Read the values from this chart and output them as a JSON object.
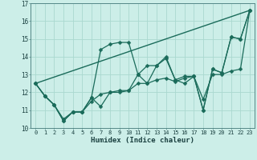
{
  "xlabel": "Humidex (Indice chaleur)",
  "bg_color": "#cceee8",
  "grid_color": "#aad8d0",
  "line_color": "#1a6b5a",
  "xlim": [
    -0.5,
    23.5
  ],
  "ylim": [
    10,
    17
  ],
  "yticks": [
    10,
    11,
    12,
    13,
    14,
    15,
    16,
    17
  ],
  "xticks": [
    0,
    1,
    2,
    3,
    4,
    5,
    6,
    7,
    8,
    9,
    10,
    11,
    12,
    13,
    14,
    15,
    16,
    17,
    18,
    19,
    20,
    21,
    22,
    23
  ],
  "series": [
    {
      "x": [
        0,
        1,
        2,
        3,
        4,
        5,
        6,
        7,
        8,
        9,
        10,
        11,
        12,
        13,
        14,
        15,
        16,
        17,
        18,
        19,
        20,
        21,
        22,
        23
      ],
      "y": [
        12.5,
        11.8,
        11.3,
        10.4,
        10.9,
        10.9,
        11.7,
        11.2,
        12.0,
        12.0,
        12.1,
        13.0,
        12.5,
        13.5,
        13.9,
        12.7,
        12.9,
        12.9,
        11.0,
        13.3,
        13.1,
        15.1,
        15.0,
        16.6
      ],
      "marker": "D",
      "markersize": 2.5,
      "lw": 0.9
    },
    {
      "x": [
        0,
        1,
        2,
        3,
        4,
        5,
        6,
        7,
        8,
        9,
        10,
        11,
        12,
        13,
        14,
        15,
        16,
        17,
        18,
        19,
        20,
        21,
        22,
        23
      ],
      "y": [
        12.5,
        11.8,
        11.3,
        10.4,
        10.9,
        10.9,
        11.7,
        14.4,
        14.7,
        14.8,
        14.8,
        13.0,
        13.5,
        13.5,
        14.0,
        12.7,
        12.5,
        12.9,
        11.0,
        13.3,
        13.1,
        15.1,
        15.0,
        16.6
      ],
      "marker": "D",
      "markersize": 2.5,
      "lw": 0.9
    },
    {
      "x": [
        0,
        23
      ],
      "y": [
        12.5,
        16.6
      ],
      "marker": null,
      "markersize": 0,
      "lw": 1.0
    },
    {
      "x": [
        0,
        1,
        2,
        3,
        4,
        5,
        6,
        7,
        8,
        9,
        10,
        11,
        12,
        13,
        14,
        15,
        16,
        17,
        18,
        19,
        20,
        21,
        22,
        23
      ],
      "y": [
        12.5,
        11.8,
        11.3,
        10.5,
        10.9,
        10.9,
        11.5,
        11.9,
        12.0,
        12.1,
        12.1,
        12.5,
        12.5,
        12.7,
        12.8,
        12.6,
        12.8,
        12.9,
        11.6,
        13.0,
        13.0,
        13.2,
        13.3,
        16.6
      ],
      "marker": "D",
      "markersize": 2.5,
      "lw": 0.9
    }
  ]
}
